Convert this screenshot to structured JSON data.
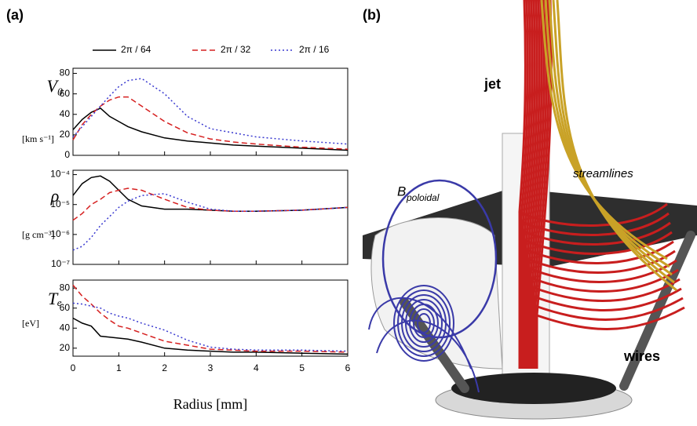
{
  "panel_a": {
    "label": "(a)"
  },
  "panel_b": {
    "label": "(b)",
    "jet": "jet",
    "streamlines": "streamlines",
    "b_symbol": "B",
    "b_subscript": "poloidal",
    "wires": "wires"
  },
  "chart_data": [
    {
      "type": "line",
      "ylabel": "V₀",
      "yunit": "[km s⁻¹]",
      "x": [
        0,
        0.2,
        0.4,
        0.6,
        0.8,
        1,
        1.2,
        1.5,
        2,
        2.5,
        3,
        3.5,
        4,
        5,
        6
      ],
      "xlim": [
        0,
        6
      ],
      "xticks": [
        0,
        1,
        2,
        3,
        4,
        5,
        6
      ],
      "ylim": [
        0,
        85
      ],
      "yticks": [
        0,
        20,
        40,
        60,
        80
      ],
      "series": [
        {
          "name": "2π / 64",
          "color": "#000000",
          "dash": "solid",
          "values": [
            25,
            35,
            42,
            46,
            38,
            33,
            28,
            23,
            17,
            14,
            12,
            10,
            9,
            7,
            5
          ]
        },
        {
          "name": "2π / 32",
          "color": "#d62020",
          "dash": "dashed",
          "values": [
            15,
            30,
            40,
            48,
            54,
            57,
            57,
            48,
            33,
            22,
            16,
            13,
            11,
            8,
            6
          ]
        },
        {
          "name": "2π / 16",
          "color": "#3a3ad0",
          "dash": "dotted",
          "values": [
            18,
            28,
            38,
            48,
            58,
            67,
            73,
            75,
            60,
            38,
            26,
            22,
            18,
            14,
            11
          ]
        }
      ]
    },
    {
      "type": "line",
      "ylabel": "ρ",
      "yunit": "[g cm⁻³]",
      "log_y": true,
      "x": [
        0,
        0.2,
        0.4,
        0.6,
        0.8,
        1,
        1.2,
        1.5,
        2,
        2.5,
        3,
        3.5,
        4,
        5,
        6
      ],
      "xlim": [
        0,
        6
      ],
      "xticks": [
        0,
        1,
        2,
        3,
        4,
        5,
        6
      ],
      "ylim": [
        1e-07,
        0.00014
      ],
      "yticks": [
        {
          "value": 1e-07,
          "label": "10⁻⁷"
        },
        {
          "value": 1e-06,
          "label": "10⁻⁶"
        },
        {
          "value": 1e-05,
          "label": "10⁻⁵"
        },
        {
          "value": 0.0001,
          "label": "10⁻⁴"
        }
      ],
      "series": [
        {
          "name": "2π / 64",
          "color": "#000000",
          "dash": "solid",
          "values": [
            2e-05,
            5e-05,
            8e-05,
            9e-05,
            6e-05,
            3e-05,
            1.5e-05,
            9e-06,
            7e-06,
            7e-06,
            6.5e-06,
            6e-06,
            6e-06,
            6.5e-06,
            8e-06
          ]
        },
        {
          "name": "2π / 32",
          "color": "#d62020",
          "dash": "dashed",
          "values": [
            3e-06,
            5e-06,
            1e-05,
            1.5e-05,
            2.5e-05,
            3e-05,
            3.5e-05,
            3e-05,
            1.5e-05,
            8e-06,
            6.5e-06,
            6e-06,
            6e-06,
            6.5e-06,
            8e-06
          ]
        },
        {
          "name": "2π / 16",
          "color": "#3a3ad0",
          "dash": "dotted",
          "values": [
            3e-07,
            4e-07,
            8e-07,
            2e-06,
            4e-06,
            8e-06,
            1.3e-05,
            2e-05,
            2.3e-05,
            1.2e-05,
            7e-06,
            6e-06,
            6e-06,
            6.5e-06,
            8e-06
          ]
        }
      ]
    },
    {
      "type": "line",
      "ylabel": "Tₑ",
      "yunit": "[eV]",
      "xlabel": "Radius [mm]",
      "x": [
        0,
        0.2,
        0.4,
        0.6,
        0.8,
        1,
        1.2,
        1.5,
        2,
        2.5,
        3,
        3.5,
        4,
        5,
        6
      ],
      "xlim": [
        0,
        6
      ],
      "xticks": [
        0,
        1,
        2,
        3,
        4,
        5,
        6
      ],
      "ylim": [
        12,
        88
      ],
      "yticks": [
        20,
        40,
        60,
        80
      ],
      "series": [
        {
          "name": "2π / 64",
          "color": "#000000",
          "dash": "solid",
          "values": [
            50,
            45,
            42,
            32,
            31,
            30,
            29,
            26,
            20,
            18,
            17,
            16,
            16,
            15,
            14
          ]
        },
        {
          "name": "2π / 32",
          "color": "#d62020",
          "dash": "dashed",
          "values": [
            83,
            72,
            64,
            55,
            48,
            42,
            40,
            35,
            27,
            23,
            19,
            18,
            17,
            17,
            16
          ]
        },
        {
          "name": "2π / 16",
          "color": "#3a3ad0",
          "dash": "dotted",
          "values": [
            65,
            64,
            62,
            60,
            55,
            52,
            50,
            45,
            38,
            28,
            21,
            19,
            18,
            18,
            17
          ]
        }
      ]
    }
  ]
}
